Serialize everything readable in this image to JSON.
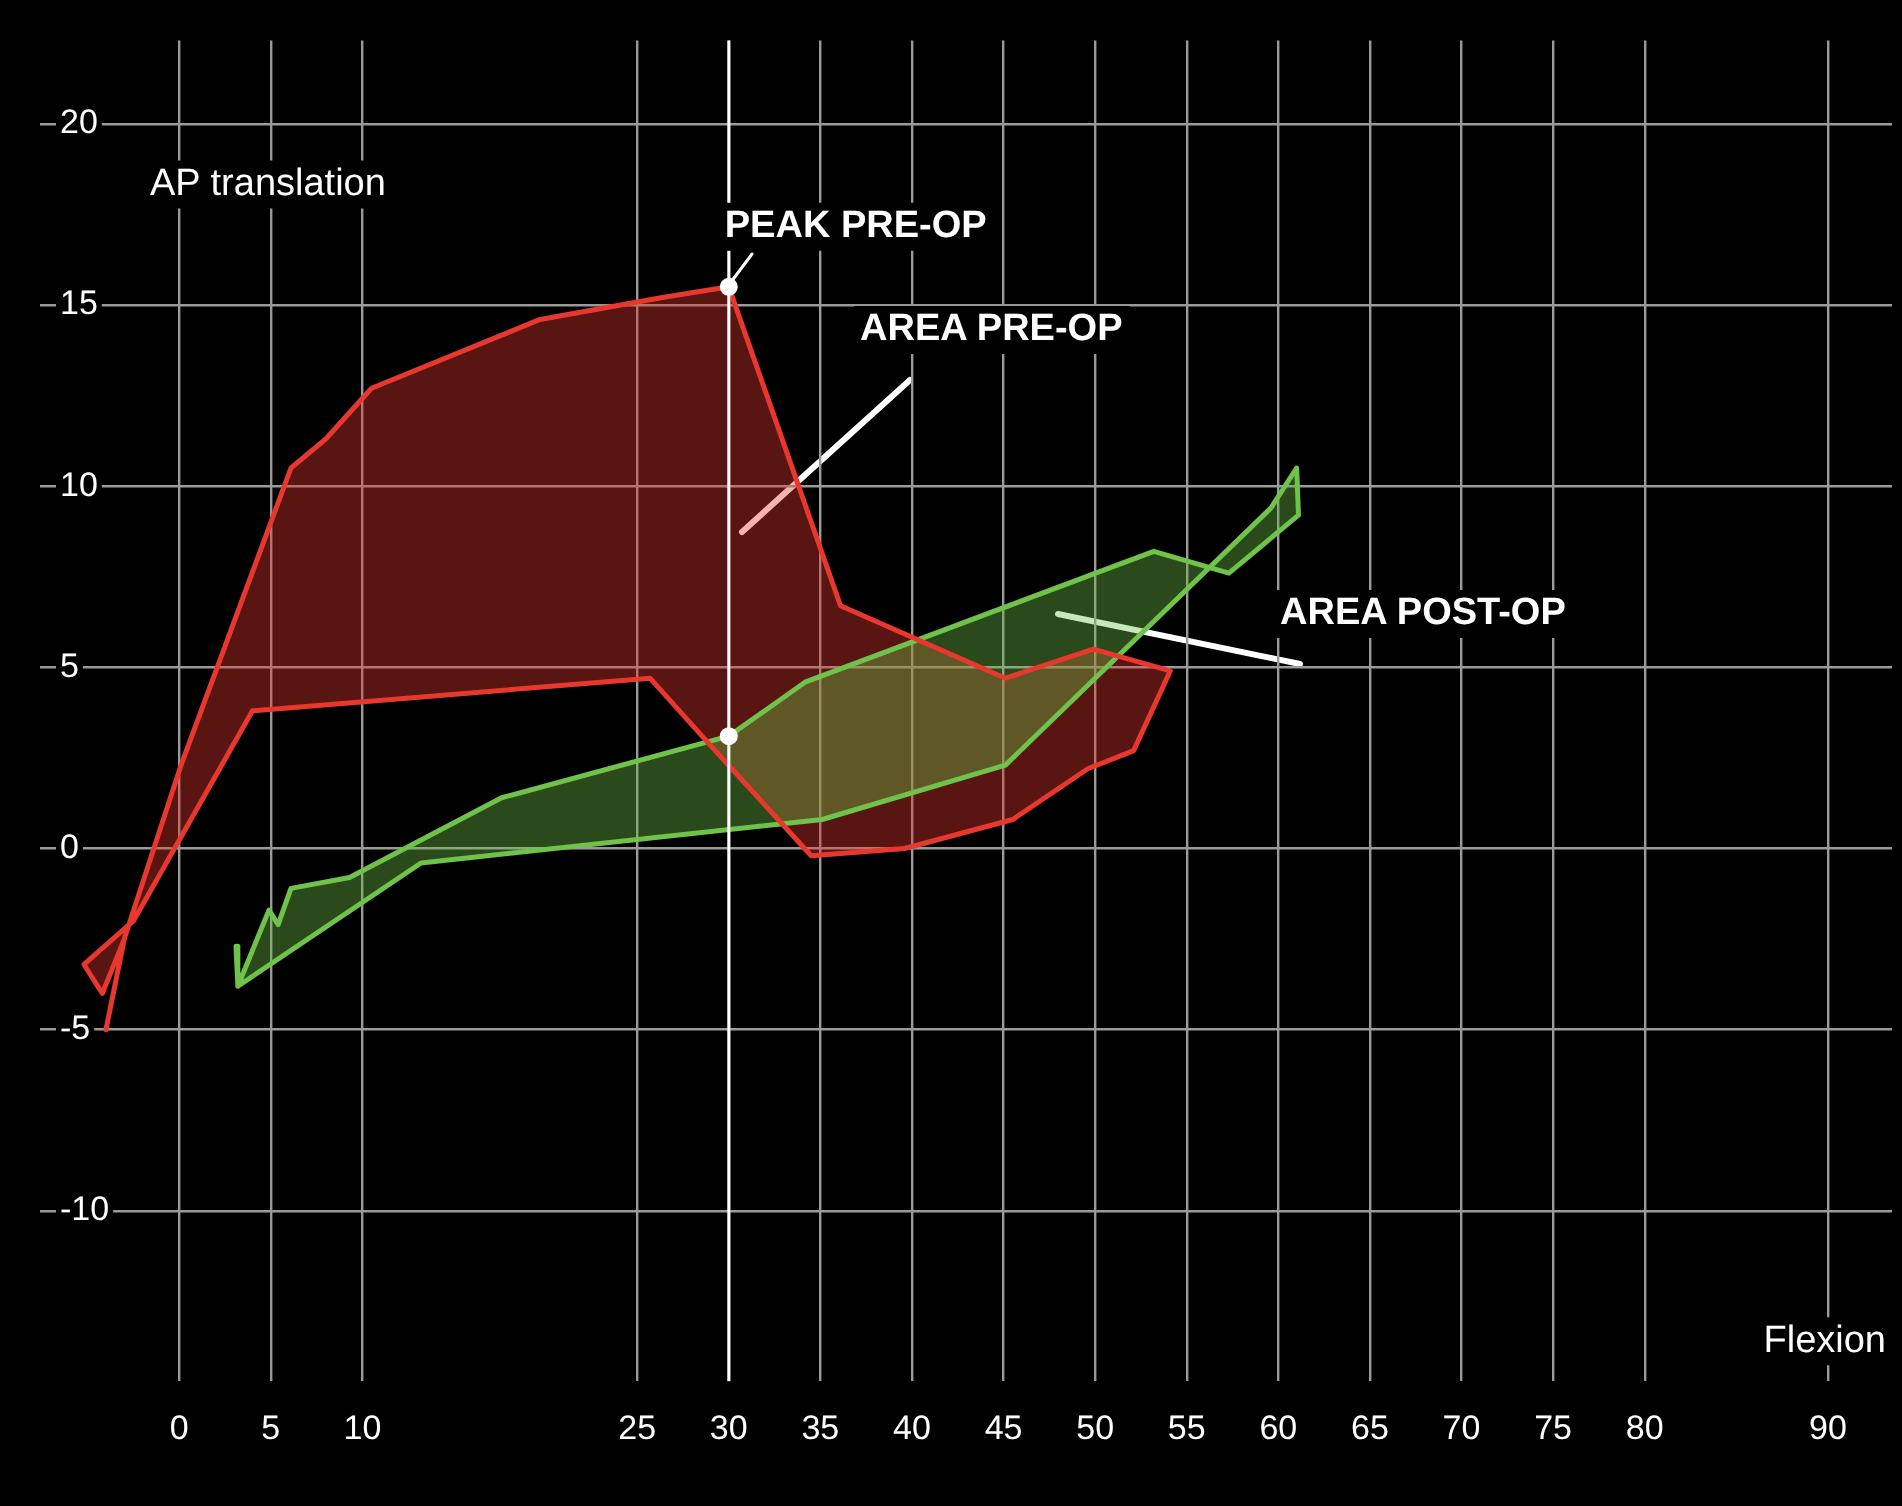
{
  "chart_data": {
    "type": "area",
    "xlabel": "Flexion",
    "ylabel": "AP translation",
    "xlim": [
      -7.6,
      93.5
    ],
    "ylim": [
      -14.7,
      22.3
    ],
    "xticks": [
      0,
      5,
      10,
      25,
      30,
      35,
      40,
      45,
      50,
      55,
      60,
      65,
      70,
      75,
      80,
      90
    ],
    "yticks": [
      -10,
      -5,
      0,
      5,
      10,
      15,
      20
    ],
    "grid": true,
    "legend": false,
    "line_style": "solid",
    "series": [
      {
        "type": "area",
        "color": "#e8382e",
        "x": [
          -4.0,
          -3.0,
          0.1,
          6.1,
          8.0,
          10.5,
          19.7,
          26.3,
          30,
          36.1,
          45.1,
          49.9,
          54.1,
          52.1,
          49.6,
          45.5,
          39.6,
          34.5,
          28.9,
          25.7,
          4.0,
          -2.5,
          -5.2,
          -4.2,
          -3.0
        ],
        "values": [
          -5.0,
          -2.5,
          2.3,
          10.5,
          11.3,
          12.7,
          14.6,
          15.2,
          15.5,
          6.7,
          4.7,
          5.5,
          4.9,
          2.7,
          2.2,
          0.8,
          0.0,
          -0.2,
          2.9,
          4.7,
          3.8,
          -2.0,
          -3.2,
          -4.0,
          -2.5
        ]
      },
      {
        "type": "area",
        "color": "#6fc24a",
        "x": [
          3.1,
          3.2,
          4.9,
          5.4,
          6.1,
          9.3,
          17.6,
          30,
          34.2,
          53.2,
          57.3,
          61.1,
          61.0,
          59.6,
          45.1,
          35.1,
          13.2,
          3.2
        ],
        "values": [
          -2.7,
          -3.8,
          -1.7,
          -2.1,
          -1.1,
          -0.8,
          1.4,
          3.1,
          4.6,
          8.2,
          7.6,
          9.2,
          10.5,
          9.4,
          2.3,
          0.8,
          -0.4,
          -3.8
        ]
      },
      {
        "type": "scatter",
        "color": "#ffffff",
        "marker": "circle",
        "x": [
          30,
          30
        ],
        "values": [
          15.5,
          3.1
        ]
      }
    ],
    "ref_lines": [
      {
        "axis": "x",
        "value": 30,
        "color": "#ffffff"
      }
    ],
    "annotations": [
      {
        "text": "PEAK PRE-OP",
        "x": 30,
        "y": 15.5
      },
      "AREA PRE-OP",
      "AREA POST-OP"
    ]
  }
}
